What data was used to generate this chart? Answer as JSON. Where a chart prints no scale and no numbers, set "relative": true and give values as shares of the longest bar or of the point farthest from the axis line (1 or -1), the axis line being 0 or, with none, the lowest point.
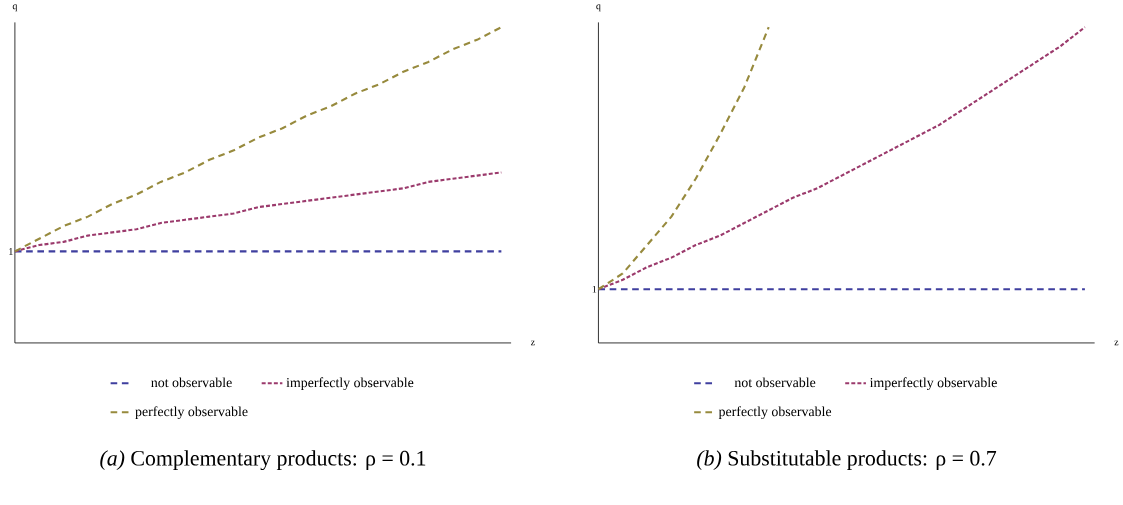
{
  "chart_data": [
    {
      "type": "line",
      "title": "*(a)* Complementary products: ρ = 0.1",
      "xlabel": "z",
      "ylabel": "q",
      "relative": true,
      "legend": "bottom",
      "categories": [
        null,
        null,
        null,
        null,
        null,
        null,
        null,
        null,
        null,
        null,
        null,
        null,
        null,
        null,
        null,
        null,
        null,
        null,
        null,
        null,
        null
      ],
      "annotations": [
        {
          "text": "1",
          "y": 0.29
        }
      ],
      "series": [
        {
          "name": "not observable",
          "color": "#3f3f9f",
          "line_style": "dashed",
          "values": [
            0.29,
            0.29,
            0.29,
            0.29,
            0.29,
            0.29,
            0.29,
            0.29,
            0.29,
            0.29,
            0.29,
            0.29,
            0.29,
            0.29,
            0.29,
            0.29,
            0.29,
            0.29,
            0.29,
            0.29,
            0.29
          ]
        },
        {
          "name": "imperfectly observable",
          "color": "#9b3a6c",
          "line_style": "dotted",
          "values": [
            0.29,
            0.31,
            0.32,
            0.34,
            0.35,
            0.36,
            0.38,
            0.39,
            0.4,
            0.41,
            0.43,
            0.44,
            0.45,
            0.46,
            0.47,
            0.48,
            0.49,
            0.51,
            0.52,
            0.53,
            0.54
          ]
        },
        {
          "name": "perfectly observable",
          "color": "#978a3d",
          "line_style": "dashed",
          "values": [
            0.29,
            0.33,
            0.37,
            0.4,
            0.44,
            0.47,
            0.51,
            0.54,
            0.58,
            0.61,
            0.65,
            0.68,
            0.72,
            0.75,
            0.79,
            0.82,
            0.86,
            0.89,
            0.93,
            0.96,
            1
          ]
        }
      ]
    },
    {
      "type": "line",
      "title": "*(b)* Substitutable products: ρ = 0.7",
      "xlabel": "z",
      "ylabel": "q",
      "relative": true,
      "legend": "bottom",
      "categories": [
        null,
        null,
        null,
        null,
        null,
        null,
        null,
        null,
        null,
        null,
        null,
        null,
        null,
        null,
        null,
        null,
        null,
        null,
        null,
        null,
        null
      ],
      "annotations": [
        {
          "text": "1",
          "y": 0.17
        }
      ],
      "series": [
        {
          "name": "not observable",
          "color": "#3f3f9f",
          "line_style": "dashed",
          "values": [
            0.17,
            0.17,
            0.17,
            0.17,
            0.17,
            0.17,
            0.17,
            0.17,
            0.17,
            0.17,
            0.17,
            0.17,
            0.17,
            0.17,
            0.17,
            0.17,
            0.17,
            0.17,
            0.17,
            0.17,
            0.17
          ]
        },
        {
          "name": "imperfectly observable",
          "color": "#9b3a6c",
          "line_style": "dotted",
          "values": [
            0.17,
            0.2,
            0.24,
            0.27,
            0.31,
            0.34,
            0.38,
            0.42,
            0.46,
            0.49,
            0.53,
            0.57,
            0.61,
            0.65,
            0.69,
            0.74,
            0.79,
            0.84,
            0.89,
            0.94,
            1
          ]
        },
        {
          "name": "perfectly observable",
          "color": "#978a3d",
          "line_style": "dashed",
          "values": [
            0.17,
            0.22,
            0.31,
            0.4,
            0.52,
            0.66,
            0.81,
            1,
            null,
            null,
            null,
            null,
            null,
            null,
            null,
            null,
            null,
            null,
            null,
            null,
            null
          ]
        }
      ]
    }
  ]
}
